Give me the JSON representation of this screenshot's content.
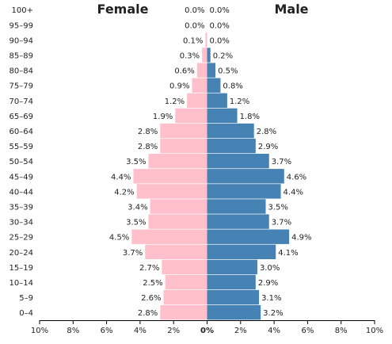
{
  "chart_data": {
    "type": "bar",
    "orientation": "horizontal-diverging",
    "categories": [
      "100+",
      "95–99",
      "90–94",
      "85–89",
      "80–84",
      "75–79",
      "70–74",
      "65–69",
      "60–64",
      "55–59",
      "50–54",
      "45–49",
      "40–44",
      "35–39",
      "30–34",
      "25–29",
      "20–24",
      "15–19",
      "10–14",
      "5–9",
      "0–4"
    ],
    "series": [
      {
        "name": "Female",
        "color": "#ffc0cb",
        "values": [
          0.0,
          0.0,
          0.1,
          0.3,
          0.6,
          0.9,
          1.2,
          1.9,
          2.8,
          2.8,
          3.5,
          4.4,
          4.2,
          3.4,
          3.5,
          4.5,
          3.7,
          2.7,
          2.5,
          2.6,
          2.8
        ],
        "labels": [
          "0.0%",
          "0.0%",
          "0.1%",
          "0.3%",
          "0.6%",
          "0.9%",
          "1.2%",
          "1.9%",
          "2.8%",
          "2.8%",
          "3.5%",
          "4.4%",
          "4.2%",
          "3.4%",
          "3.5%",
          "4.5%",
          "3.7%",
          "2.7%",
          "2.5%",
          "2.6%",
          "2.8%"
        ]
      },
      {
        "name": "Male",
        "color": "#4682b4",
        "values": [
          0.0,
          0.0,
          0.0,
          0.2,
          0.5,
          0.8,
          1.2,
          1.8,
          2.8,
          2.9,
          3.7,
          4.6,
          4.4,
          3.5,
          3.7,
          4.9,
          4.1,
          3.0,
          2.9,
          3.1,
          3.2
        ],
        "labels": [
          "0.0%",
          "0.0%",
          "0.0%",
          "0.2%",
          "0.5%",
          "0.8%",
          "1.2%",
          "1.8%",
          "2.8%",
          "2.9%",
          "3.7%",
          "4.6%",
          "4.4%",
          "3.5%",
          "3.7%",
          "4.9%",
          "4.1%",
          "3.0%",
          "2.9%",
          "3.1%",
          "3.2%"
        ]
      }
    ],
    "xlim": [
      -10,
      10
    ],
    "x_ticks": [
      -10,
      -8,
      -6,
      -4,
      -2,
      0,
      2,
      4,
      6,
      8,
      10
    ],
    "x_tick_labels": [
      "10%",
      "8%",
      "6%",
      "4%",
      "2%",
      "0%",
      "2%",
      "4%",
      "6%",
      "8%",
      "10%"
    ],
    "grid": false,
    "legend": "none",
    "title": "",
    "xlabel": "",
    "ylabel": ""
  }
}
